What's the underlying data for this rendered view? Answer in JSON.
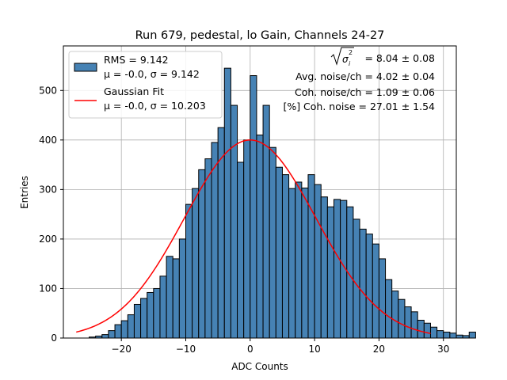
{
  "chart_data": {
    "type": "bar",
    "title": "Run 679, pedestal, lo Gain, Channels 24-27",
    "xlabel": "ADC Counts",
    "ylabel": "Entries",
    "xlim": [
      -29,
      32
    ],
    "ylim": [
      0,
      590
    ],
    "xticks": [
      -20,
      -10,
      0,
      10,
      20,
      30
    ],
    "yticks": [
      0,
      100,
      200,
      300,
      400,
      500
    ],
    "grid": true,
    "legend_position": "upper-left",
    "bar_color": "#4682b4",
    "fit_color": "#ff0000",
    "bins": {
      "edges_start": -25,
      "bin_width": 1,
      "counts": [
        2,
        4,
        7,
        15,
        27,
        35,
        47,
        68,
        80,
        92,
        100,
        125,
        165,
        160,
        200,
        270,
        302,
        340,
        362,
        395,
        425,
        545,
        470,
        355,
        400,
        530,
        410,
        470,
        385,
        345,
        330,
        302,
        315,
        303,
        330,
        310,
        285,
        265,
        280,
        278,
        265,
        240,
        220,
        210,
        190,
        160,
        118,
        95,
        78,
        63,
        53,
        36,
        30,
        22,
        15,
        12,
        10,
        6,
        5,
        12
      ]
    },
    "fit": {
      "name": "Gaussian Fit",
      "mu": 0.0,
      "sigma": 10.203,
      "amplitude": 400,
      "x_range": [
        -27,
        28
      ]
    },
    "legend": {
      "histogram": {
        "line1": "RMS = 9.142",
        "line2": "μ = -0.0, σ = 9.142"
      },
      "fit": {
        "line1": "Gaussian Fit",
        "line2": "μ = -0.0, σ = 10.203"
      }
    },
    "annotations": {
      "line1_value": " = 8.04 ± 0.08",
      "line2": "Avg. noise/ch = 4.02 ± 0.04",
      "line3": "Coh. noise/ch = 1.09 ± 0.06",
      "line4": "[%] Coh. noise = 27.01 ± 1.54"
    }
  }
}
